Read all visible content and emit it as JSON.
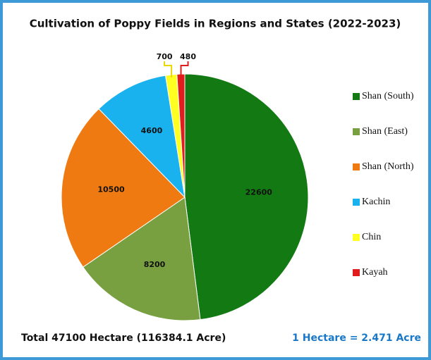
{
  "chart_data": {
    "type": "pie",
    "title": "Cultivation of Poppy Fields in Regions and States (2022-2023)",
    "categories": [
      "Shan (South)",
      "Shan (East)",
      "Shan (North)",
      "Kachin",
      "Chin",
      "Kayah"
    ],
    "values": [
      22600,
      8200,
      10500,
      4600,
      700,
      480
    ],
    "colors": [
      "#137a13",
      "#78a040",
      "#f07a12",
      "#19b2ef",
      "#ffff22",
      "#e01c1c"
    ],
    "legend": "right",
    "footer_left": "Total 47100 Hectare (116384.1 Acre)",
    "footer_right": "1 Hectare = 2.471 Acre"
  }
}
